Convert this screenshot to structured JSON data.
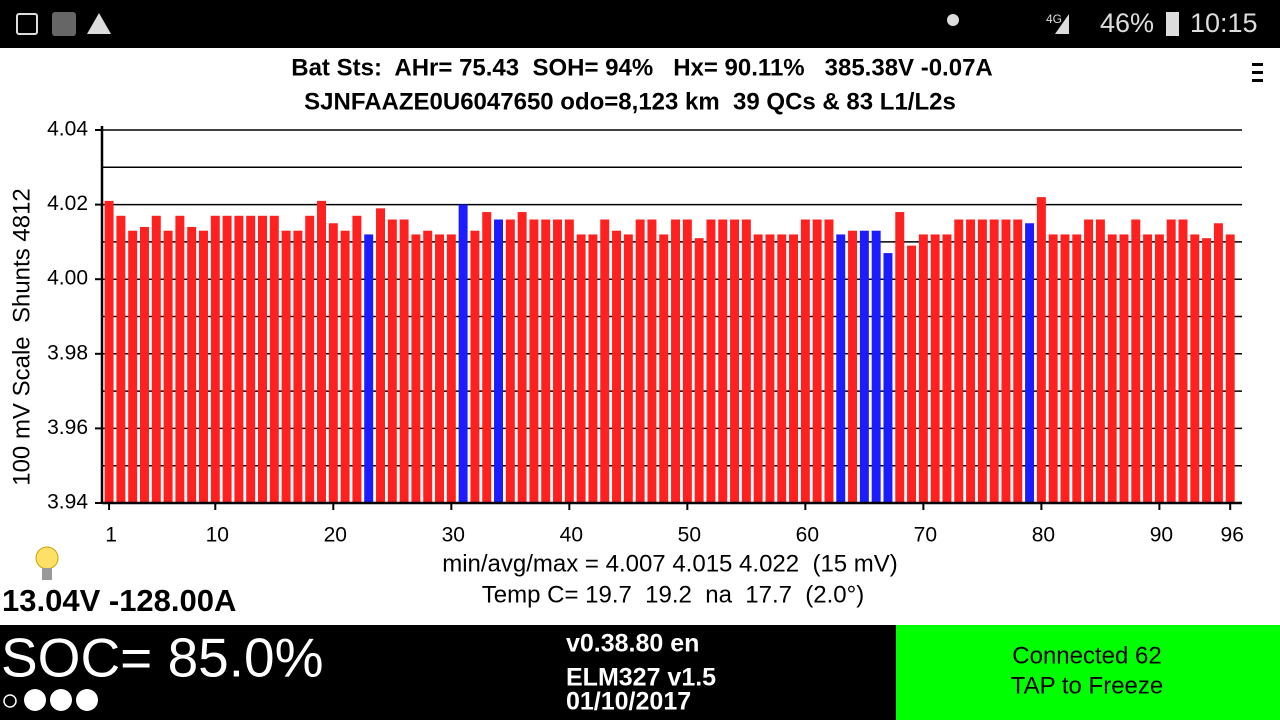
{
  "status_bar": {
    "network": "4G",
    "battery": "46%",
    "time": "10:15"
  },
  "header": {
    "line1": "Bat Sts:  AHr= 75.43  SOH= 94%   Hx= 90.11%   385.38V -0.07A",
    "line2": "SJNFAAZE0U6047650 odo=8,123 km  39 QCs & 83 L1/L2s"
  },
  "chart_data": {
    "type": "bar",
    "y_label": "100 mV Scale  Shunts 4812",
    "x": [
      1,
      2,
      3,
      4,
      5,
      6,
      7,
      8,
      9,
      10,
      11,
      12,
      13,
      14,
      15,
      16,
      17,
      18,
      19,
      20,
      21,
      22,
      23,
      24,
      25,
      26,
      27,
      28,
      29,
      30,
      31,
      32,
      33,
      34,
      35,
      36,
      37,
      38,
      39,
      40,
      41,
      42,
      43,
      44,
      45,
      46,
      47,
      48,
      49,
      50,
      51,
      52,
      53,
      54,
      55,
      56,
      57,
      58,
      59,
      60,
      61,
      62,
      63,
      64,
      65,
      66,
      67,
      68,
      69,
      70,
      71,
      72,
      73,
      74,
      75,
      76,
      77,
      78,
      79,
      80,
      81,
      82,
      83,
      84,
      85,
      86,
      87,
      88,
      89,
      90,
      91,
      92,
      93,
      94,
      95,
      96
    ],
    "values": [
      4.021,
      4.017,
      4.013,
      4.014,
      4.017,
      4.013,
      4.017,
      4.014,
      4.013,
      4.017,
      4.017,
      4.017,
      4.017,
      4.017,
      4.017,
      4.013,
      4.013,
      4.017,
      4.021,
      4.015,
      4.013,
      4.017,
      4.012,
      4.019,
      4.016,
      4.016,
      4.012,
      4.013,
      4.012,
      4.012,
      4.02,
      4.013,
      4.018,
      4.016,
      4.016,
      4.018,
      4.016,
      4.016,
      4.016,
      4.016,
      4.012,
      4.012,
      4.016,
      4.013,
      4.012,
      4.016,
      4.016,
      4.012,
      4.016,
      4.016,
      4.011,
      4.016,
      4.016,
      4.016,
      4.016,
      4.012,
      4.012,
      4.012,
      4.012,
      4.016,
      4.016,
      4.016,
      4.012,
      4.013,
      4.013,
      4.013,
      4.007,
      4.018,
      4.009,
      4.012,
      4.012,
      4.012,
      4.016,
      4.016,
      4.016,
      4.016,
      4.016,
      4.016,
      4.015,
      4.022,
      4.012,
      4.012,
      4.012,
      4.016,
      4.016,
      4.012,
      4.012,
      4.016,
      4.012,
      4.012,
      4.016,
      4.016,
      4.012,
      4.011,
      4.015,
      4.012
    ],
    "color": "#ff2020",
    "highlight_color": "#1c1cff",
    "highlight_bars": [
      23,
      31,
      34,
      63,
      65,
      66,
      67,
      79
    ],
    "xlim": [
      0.4,
      97
    ],
    "xticks": [
      1,
      10,
      20,
      30,
      40,
      50,
      60,
      70,
      80,
      90,
      96
    ],
    "ylim": [
      3.94,
      4.04
    ],
    "yticks": [
      3.94,
      3.96,
      3.98,
      {
        "value": 4,
        "label": "4.00"
      },
      4.02,
      4.04
    ],
    "yminor": [
      3.95,
      3.97,
      3.99,
      4.01,
      4.03
    ],
    "grid": true
  },
  "stats": {
    "line1": "min/avg/max = 4.007 4.015 4.022  (15 mV)",
    "line2": "Temp C= 19.7  19.2  na  17.7  (2.0°)",
    "pack": "13.04V -128.00A"
  },
  "footer": {
    "soc": "SOC= 85.0%",
    "version": "v0.38.80 en",
    "adapter": "ELM327 v1.5",
    "date": "01/10/2017",
    "status1": "Connected 62",
    "status2": "TAP to Freeze"
  }
}
